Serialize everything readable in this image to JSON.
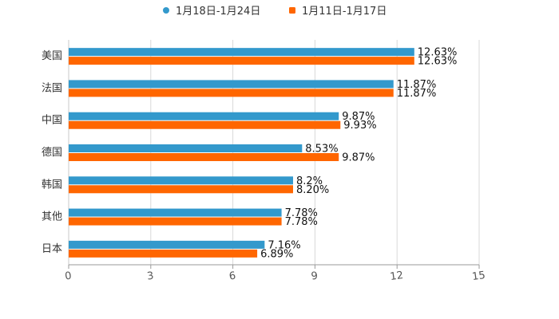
{
  "chart_data": {
    "type": "bar",
    "orientation": "horizontal",
    "title": "",
    "xlabel": "",
    "ylabel": "",
    "categories": [
      "美国",
      "法国",
      "中国",
      "德国",
      "韩国",
      "其他",
      "日本"
    ],
    "series": [
      {
        "name": "1月18日-1月24日",
        "color": "#3399cc",
        "values": [
          12.63,
          11.87,
          9.87,
          8.53,
          8.2,
          7.78,
          7.16
        ],
        "labels": [
          "12.63%",
          "11.87%",
          "9.87%",
          "8.53%",
          "8.2%",
          "7.78%",
          "7.16%"
        ]
      },
      {
        "name": "1月11日-1月17日",
        "color": "#ff6600",
        "values": [
          12.63,
          11.87,
          9.93,
          9.87,
          8.2,
          7.78,
          6.89
        ],
        "labels": [
          "12.63%",
          "11.87%",
          "9.93%",
          "9.87%",
          "8.20%",
          "7.78%",
          "6.89%"
        ]
      }
    ],
    "xlim": [
      0,
      15
    ],
    "xticks": [
      0,
      3,
      6,
      9,
      12,
      15
    ],
    "xtick_labels": [
      "0",
      "3",
      "6",
      "9",
      "12",
      "15"
    ],
    "grid": true,
    "legend_position": "top-center"
  }
}
